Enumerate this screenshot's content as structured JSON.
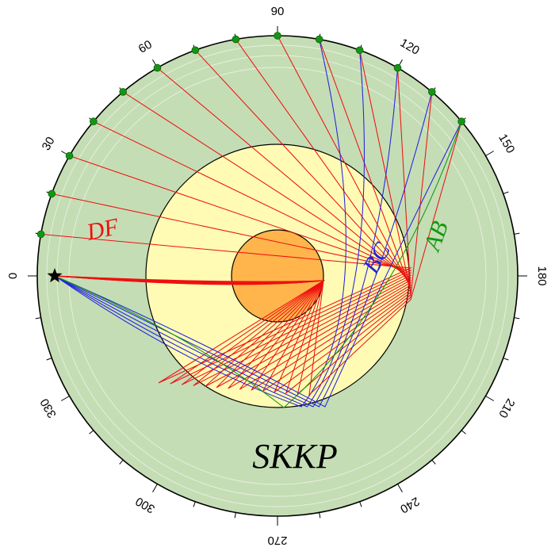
{
  "title": "SKKP",
  "colors": {
    "mantle": "#c5ddb5",
    "outer_core": "#fffbb4",
    "inner_core": "#ffb54c",
    "df": "#ee1111",
    "bc": "#2222dd",
    "ab": "#119911",
    "station": "#139713",
    "source": "#000000"
  },
  "tick_labels": [
    "0",
    "30",
    "60",
    "90",
    "120",
    "150",
    "180",
    "210",
    "240",
    "270",
    "300",
    "330"
  ],
  "tick_angles": [
    0,
    30,
    60,
    90,
    120,
    150,
    180,
    210,
    240,
    270,
    300,
    330
  ],
  "minor_step_deg": 10,
  "station_distances": [
    10,
    20,
    30,
    40,
    50,
    60,
    70,
    80,
    90,
    100,
    110,
    120,
    130,
    140
  ],
  "branches": [
    {
      "id": "df",
      "label": "DF"
    },
    {
      "id": "bc",
      "label": "BC"
    },
    {
      "id": "ab",
      "label": "AB"
    }
  ]
}
